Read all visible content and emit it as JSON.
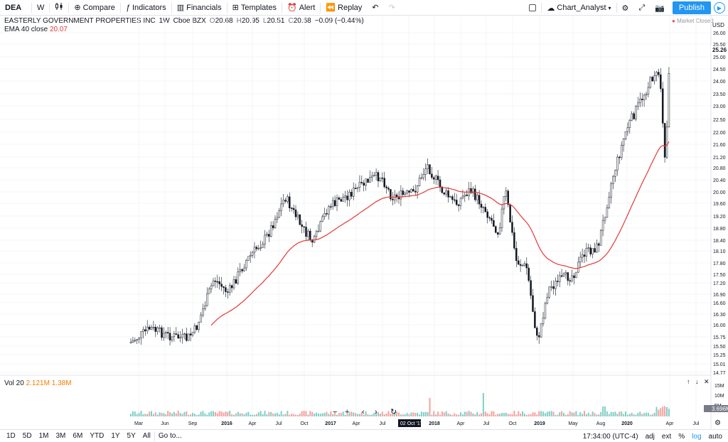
{
  "toolbar": {
    "symbol": "DEA",
    "interval": "W",
    "compare": "Compare",
    "indicators": "Indicators",
    "financials": "Financials",
    "templates": "Templates",
    "alert": "Alert",
    "replay": "Replay",
    "layout_name": "Chart_Analyst",
    "publish": "Publish"
  },
  "legend": {
    "name": "EASTERLY GOVERNMENT PROPERTIES INC",
    "interval": "1W",
    "exchange": "Cboe BZX",
    "o_label": "O",
    "o": "20.68",
    "h_label": "H",
    "h": "20.95",
    "l_label": "L",
    "l": "20.51",
    "c_label": "C",
    "c": "20.58",
    "change": "−0.09 (−0.44%)"
  },
  "ema": {
    "label": "EMA 40 close",
    "value": "20.07"
  },
  "market_status": "Market Closed",
  "currency": "USD",
  "volume": {
    "label": "Vol 20",
    "value1": "2.121M",
    "value2": "1.38M",
    "last_tag": "3.696M"
  },
  "colors": {
    "up": "#26a69a",
    "down": "#ef5350",
    "ema": "#e53935",
    "accent": "#2196f3"
  },
  "chart_data": {
    "type": "candlestick",
    "y_ticks": [
      "26.00",
      "25.50",
      "25.26",
      "25.00",
      "24.50",
      "24.00",
      "23.50",
      "23.00",
      "22.50",
      "22.00",
      "21.60",
      "21.20",
      "20.80",
      "20.40",
      "20.00",
      "19.60",
      "19.20",
      "18.80",
      "18.40",
      "18.10",
      "17.80",
      "17.50",
      "17.20",
      "16.90",
      "16.60",
      "16.30",
      "16.00",
      "15.75",
      "15.50",
      "15.25",
      "15.01",
      "14.77"
    ],
    "last_price_label": "25.26",
    "vol_ticks": [
      "15M",
      "10M",
      "5M"
    ],
    "x_ticks": [
      "Mar",
      "Jun",
      "Sep",
      "2016",
      "Apr",
      "Jul",
      "Oct",
      "2017",
      "Apr",
      "Jul",
      "Oct '17",
      "2018",
      "Apr",
      "Jul",
      "Oct",
      "2019",
      "May",
      "Aug",
      "2020",
      "Apr",
      "Jul"
    ],
    "x_ticks_bold": [
      "2016",
      "2017",
      "2018",
      "2019",
      "2020"
    ],
    "cursor_label": "02 Oct '17",
    "ylim": [
      14.77,
      26.0
    ],
    "ema_period": 40
  },
  "bottom": {
    "ranges": [
      "1D",
      "5D",
      "1M",
      "3M",
      "6M",
      "YTD",
      "1Y",
      "5Y",
      "All"
    ],
    "goto": "Go to...",
    "time": "17:34:00 (UTC-4)",
    "adj": "adj",
    "ext": "ext",
    "pct": "%",
    "log": "log",
    "auto": "auto"
  }
}
